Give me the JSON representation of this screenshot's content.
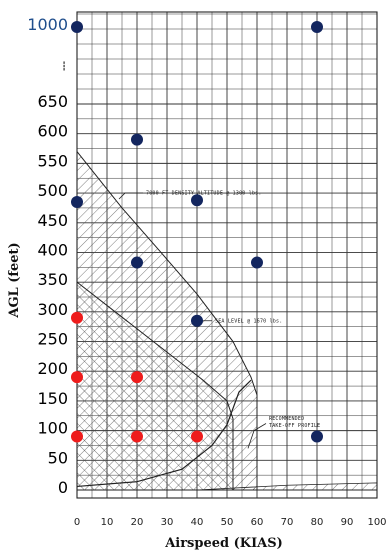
{
  "chart_data": {
    "type": "scatter",
    "title": "",
    "xlabel": "Airspeed (KIAS)",
    "ylabel": "AGL (feet)",
    "xlim": [
      0,
      100
    ],
    "ylim": [
      0,
      1000
    ],
    "x_ticks": [
      "0",
      "10",
      "20",
      "30",
      "40",
      "50",
      "60",
      "70",
      "80",
      "90",
      "100"
    ],
    "y_ticks": [
      "0",
      "50",
      "100",
      "150",
      "200",
      "250",
      "300",
      "350",
      "400",
      "450",
      "500",
      "550",
      "600",
      "650",
      "1000"
    ],
    "y_axis_break": "---",
    "grid": true,
    "series": [
      {
        "color": "#13265f",
        "points": [
          {
            "x": 0,
            "y": 1000
          },
          {
            "x": 80,
            "y": 1000
          },
          {
            "x": 20,
            "y": 590
          },
          {
            "x": 0,
            "y": 485
          },
          {
            "x": 40,
            "y": 488
          },
          {
            "x": 20,
            "y": 383
          },
          {
            "x": 60,
            "y": 383
          },
          {
            "x": 40,
            "y": 285
          },
          {
            "x": 80,
            "y": 90
          }
        ]
      },
      {
        "color": "#ee1c1c",
        "points": [
          {
            "x": 0,
            "y": 290
          },
          {
            "x": 0,
            "y": 190
          },
          {
            "x": 20,
            "y": 190
          },
          {
            "x": 0,
            "y": 90
          },
          {
            "x": 20,
            "y": 90
          },
          {
            "x": 40,
            "y": 90
          }
        ]
      }
    ],
    "annotations": [
      "7000 FT DENSITY ALTITUDE @ 1300 lbs.",
      "SEA LEVEL @ 1670 lbs.",
      "RECOMMENDED TAKE-OFF PROFILE"
    ]
  }
}
